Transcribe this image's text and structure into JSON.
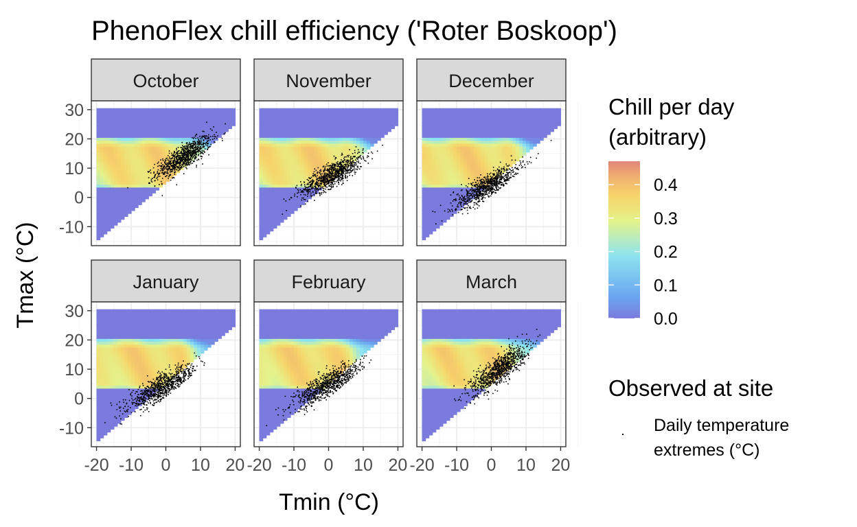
{
  "chart_data": {
    "type": "heatmap",
    "title": "PhenoFlex chill efficiency ('Roter Boskoop')",
    "xlabel": "Tmin (°C)",
    "ylabel": "Tmax (°C)",
    "xlim": [
      -21.5,
      21.5
    ],
    "ylim": [
      -16.5,
      33
    ],
    "x_ticks": [
      -20,
      -10,
      0,
      10,
      20
    ],
    "y_ticks": [
      -10,
      0,
      10,
      20,
      30
    ],
    "tick_labels": {
      "x": [
        "-20",
        "-10",
        "0",
        "10",
        "20"
      ],
      "y": [
        "-10",
        "0",
        "10",
        "20",
        "30"
      ]
    },
    "grid": true,
    "heatmap_domain": {
      "tmin_range": [
        -20,
        20
      ],
      "tmax_range": [
        -14.5,
        30
      ],
      "constraint": "Tmax >= Tmin + 5"
    },
    "chill_zone_tmax": [
      3.5,
      20.5
    ],
    "panels": [
      {
        "label": "October",
        "obs_center": [
          5,
          14
        ],
        "obs_spread": [
          4,
          3.8
        ]
      },
      {
        "label": "November",
        "obs_center": [
          1,
          8
        ],
        "obs_spread": [
          4.5,
          3.8
        ]
      },
      {
        "label": "December",
        "obs_center": [
          -1,
          4
        ],
        "obs_spread": [
          5,
          4
        ]
      },
      {
        "label": "January",
        "obs_center": [
          -1,
          4
        ],
        "obs_spread": [
          5,
          4
        ]
      },
      {
        "label": "February",
        "obs_center": [
          0,
          5
        ],
        "obs_spread": [
          5,
          4
        ]
      },
      {
        "label": "March",
        "obs_center": [
          2,
          10
        ],
        "obs_spread": [
          4,
          4.5
        ]
      }
    ],
    "legend": {
      "fill_title": [
        "Chill per day",
        "(arbitrary)"
      ],
      "fill_breaks": [
        "0.0",
        "0.1",
        "0.2",
        "0.3",
        "0.4"
      ],
      "fill_break_values": [
        0.0,
        0.1,
        0.2,
        0.3,
        0.4
      ],
      "fill_limits": [
        0.0,
        0.47
      ],
      "colors": [
        "#7a7bdc",
        "#6aa6f0",
        "#8ee4f0",
        "#e4f28a",
        "#f6d56a",
        "#f0b070",
        "#e2857a"
      ],
      "point_title": "Observed at site",
      "point_label": [
        "Daily temperature",
        "extremes (°C)"
      ],
      "position": "right"
    }
  }
}
